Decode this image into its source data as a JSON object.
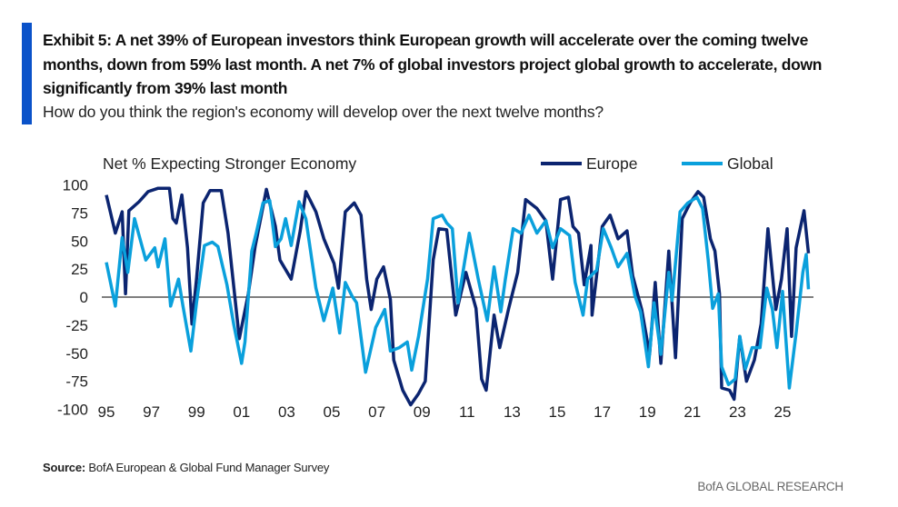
{
  "header": {
    "title": "Exhibit 5: A net 39% of European investors think European growth will accelerate over the coming twelve months, down from 59% last month. A net 7% of global investors project global growth to accelerate, down significantly from 39% last month",
    "subtitle": "How do you think the region's economy will develop over the next twelve months?"
  },
  "footer": {
    "source_label": "Source:",
    "source_text": " BofA European & Global Fund Manager Survey",
    "brand": "BofA GLOBAL RESEARCH"
  },
  "colors": {
    "accent_bar": "#0a52c9",
    "europe": "#0b2470",
    "global": "#0aa0dc",
    "zero_line": "#555555"
  },
  "chart_data": {
    "type": "line",
    "ylabel": "Net % Expecting Stronger Economy",
    "xlim": [
      1995,
      2026.2
    ],
    "ylim": [
      -100,
      100
    ],
    "yticks": [
      100,
      75,
      50,
      25,
      0,
      -25,
      -50,
      -75,
      -100
    ],
    "xtick_labels": [
      "95",
      "97",
      "99",
      "01",
      "03",
      "05",
      "07",
      "09",
      "11",
      "13",
      "15",
      "17",
      "19",
      "21",
      "23",
      "25"
    ],
    "xtick_years": [
      1995,
      1997,
      1999,
      2001,
      2003,
      2005,
      2007,
      2009,
      2011,
      2013,
      2015,
      2017,
      2019,
      2021,
      2023,
      2025
    ],
    "legend_position": "top-right",
    "grid": false,
    "series": [
      {
        "name": "Europe",
        "points": [
          [
            1995.0,
            91
          ],
          [
            1995.4,
            57
          ],
          [
            1995.7,
            76
          ],
          [
            1995.85,
            3
          ],
          [
            1996.0,
            77
          ],
          [
            1996.45,
            85
          ],
          [
            1996.85,
            94
          ],
          [
            1997.3,
            97
          ],
          [
            1997.8,
            97
          ],
          [
            1997.95,
            70
          ],
          [
            1998.1,
            66
          ],
          [
            1998.35,
            91
          ],
          [
            1998.6,
            44
          ],
          [
            1998.8,
            -24
          ],
          [
            1999.0,
            16
          ],
          [
            1999.3,
            84
          ],
          [
            1999.6,
            95
          ],
          [
            2000.1,
            95
          ],
          [
            2000.4,
            57
          ],
          [
            2000.9,
            -37
          ],
          [
            2001.3,
            3
          ],
          [
            2001.6,
            45
          ],
          [
            2002.1,
            96
          ],
          [
            2002.5,
            63
          ],
          [
            2002.7,
            33
          ],
          [
            2003.2,
            16
          ],
          [
            2003.6,
            59
          ],
          [
            2003.85,
            94
          ],
          [
            2004.3,
            76
          ],
          [
            2004.65,
            52
          ],
          [
            2005.1,
            30
          ],
          [
            2005.3,
            8
          ],
          [
            2005.6,
            76
          ],
          [
            2006.0,
            84
          ],
          [
            2006.3,
            73
          ],
          [
            2006.55,
            16
          ],
          [
            2006.75,
            -11
          ],
          [
            2007.0,
            16
          ],
          [
            2007.3,
            27
          ],
          [
            2007.6,
            -2
          ],
          [
            2007.75,
            -56
          ],
          [
            2008.15,
            -83
          ],
          [
            2008.5,
            -96
          ],
          [
            2008.85,
            -86
          ],
          [
            2009.15,
            -75
          ],
          [
            2009.5,
            33
          ],
          [
            2009.75,
            61
          ],
          [
            2010.1,
            60
          ],
          [
            2010.5,
            -16
          ],
          [
            2010.95,
            22
          ],
          [
            2011.4,
            -10
          ],
          [
            2011.65,
            -73
          ],
          [
            2011.85,
            -83
          ],
          [
            2012.2,
            -16
          ],
          [
            2012.45,
            -45
          ],
          [
            2012.85,
            -10
          ],
          [
            2013.25,
            22
          ],
          [
            2013.6,
            87
          ],
          [
            2014.1,
            79
          ],
          [
            2014.5,
            68
          ],
          [
            2014.8,
            16
          ],
          [
            2015.15,
            87
          ],
          [
            2015.5,
            89
          ],
          [
            2015.7,
            63
          ],
          [
            2015.95,
            57
          ],
          [
            2016.2,
            11
          ],
          [
            2016.5,
            46
          ],
          [
            2016.55,
            -16
          ],
          [
            2017.0,
            63
          ],
          [
            2017.35,
            73
          ],
          [
            2017.7,
            52
          ],
          [
            2018.1,
            59
          ],
          [
            2018.35,
            19
          ],
          [
            2018.75,
            -11
          ],
          [
            2019.1,
            -51
          ],
          [
            2019.35,
            13
          ],
          [
            2019.6,
            -59
          ],
          [
            2019.95,
            41
          ],
          [
            2020.25,
            -54
          ],
          [
            2020.55,
            70
          ],
          [
            2020.9,
            84
          ],
          [
            2021.25,
            94
          ],
          [
            2021.5,
            89
          ],
          [
            2021.8,
            52
          ],
          [
            2022.0,
            41
          ],
          [
            2022.2,
            3
          ],
          [
            2022.3,
            -81
          ],
          [
            2022.65,
            -83
          ],
          [
            2022.85,
            -91
          ],
          [
            2023.1,
            -35
          ],
          [
            2023.4,
            -75
          ],
          [
            2023.75,
            -56
          ],
          [
            2024.05,
            -24
          ],
          [
            2024.35,
            61
          ],
          [
            2024.7,
            -11
          ],
          [
            2024.95,
            16
          ],
          [
            2025.2,
            61
          ],
          [
            2025.4,
            -35
          ],
          [
            2025.6,
            44
          ],
          [
            2025.95,
            77
          ],
          [
            2026.15,
            39
          ]
        ]
      },
      {
        "name": "Global",
        "points": [
          [
            1995.0,
            31
          ],
          [
            1995.4,
            -8
          ],
          [
            1995.7,
            53
          ],
          [
            1995.95,
            22
          ],
          [
            1996.25,
            70
          ],
          [
            1996.45,
            55
          ],
          [
            1996.75,
            33
          ],
          [
            1997.15,
            44
          ],
          [
            1997.3,
            27
          ],
          [
            1997.6,
            52
          ],
          [
            1997.85,
            -8
          ],
          [
            1998.2,
            16
          ],
          [
            1998.4,
            -8
          ],
          [
            1998.75,
            -48
          ],
          [
            1999.0,
            -5
          ],
          [
            1999.35,
            46
          ],
          [
            1999.7,
            49
          ],
          [
            1999.95,
            45
          ],
          [
            2000.35,
            11
          ],
          [
            2000.65,
            -24
          ],
          [
            2001.0,
            -59
          ],
          [
            2001.15,
            -40
          ],
          [
            2001.45,
            41
          ],
          [
            2001.65,
            57
          ],
          [
            2001.95,
            84
          ],
          [
            2002.25,
            86
          ],
          [
            2002.5,
            45
          ],
          [
            2002.75,
            52
          ],
          [
            2002.95,
            70
          ],
          [
            2003.2,
            46
          ],
          [
            2003.55,
            85
          ],
          [
            2003.85,
            70
          ],
          [
            2004.3,
            8
          ],
          [
            2004.65,
            -21
          ],
          [
            2005.05,
            8
          ],
          [
            2005.35,
            -32
          ],
          [
            2005.6,
            13
          ],
          [
            2005.9,
            1
          ],
          [
            2006.1,
            -5
          ],
          [
            2006.5,
            -67
          ],
          [
            2006.95,
            -27
          ],
          [
            2007.35,
            -11
          ],
          [
            2007.6,
            -48
          ],
          [
            2008.0,
            -45
          ],
          [
            2008.35,
            -40
          ],
          [
            2008.55,
            -65
          ],
          [
            2008.85,
            -35
          ],
          [
            2009.25,
            16
          ],
          [
            2009.5,
            70
          ],
          [
            2009.9,
            73
          ],
          [
            2010.1,
            66
          ],
          [
            2010.35,
            61
          ],
          [
            2010.6,
            -5
          ],
          [
            2011.1,
            57
          ],
          [
            2011.5,
            16
          ],
          [
            2011.9,
            -21
          ],
          [
            2012.2,
            27
          ],
          [
            2012.5,
            -13
          ],
          [
            2012.7,
            16
          ],
          [
            2013.05,
            61
          ],
          [
            2013.4,
            57
          ],
          [
            2013.75,
            73
          ],
          [
            2014.1,
            57
          ],
          [
            2014.5,
            68
          ],
          [
            2014.8,
            44
          ],
          [
            2015.15,
            61
          ],
          [
            2015.55,
            55
          ],
          [
            2015.8,
            13
          ],
          [
            2016.15,
            -16
          ],
          [
            2016.35,
            16
          ],
          [
            2016.75,
            24
          ],
          [
            2017.05,
            61
          ],
          [
            2017.4,
            44
          ],
          [
            2017.7,
            27
          ],
          [
            2018.1,
            39
          ],
          [
            2018.45,
            1
          ],
          [
            2018.7,
            -13
          ],
          [
            2019.05,
            -62
          ],
          [
            2019.3,
            -5
          ],
          [
            2019.6,
            -51
          ],
          [
            2019.95,
            22
          ],
          [
            2020.1,
            -3
          ],
          [
            2020.45,
            76
          ],
          [
            2020.8,
            84
          ],
          [
            2021.2,
            89
          ],
          [
            2021.45,
            79
          ],
          [
            2021.7,
            33
          ],
          [
            2021.9,
            -10
          ],
          [
            2022.15,
            3
          ],
          [
            2022.3,
            -62
          ],
          [
            2022.6,
            -78
          ],
          [
            2022.9,
            -73
          ],
          [
            2023.1,
            -35
          ],
          [
            2023.35,
            -64
          ],
          [
            2023.65,
            -45
          ],
          [
            2024.0,
            -45
          ],
          [
            2024.3,
            8
          ],
          [
            2024.55,
            -11
          ],
          [
            2024.75,
            -45
          ],
          [
            2025.0,
            5
          ],
          [
            2025.3,
            -81
          ],
          [
            2025.6,
            -32
          ],
          [
            2025.9,
            22
          ],
          [
            2026.05,
            38
          ],
          [
            2026.15,
            7
          ]
        ]
      }
    ]
  }
}
